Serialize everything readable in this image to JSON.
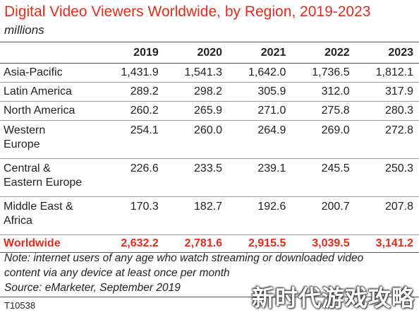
{
  "chart_data": {
    "type": "table",
    "title": "Digital Video Viewers Worldwide, by Region, 2019-2023",
    "subtitle": "millions",
    "columns": [
      "2019",
      "2020",
      "2021",
      "2022",
      "2023"
    ],
    "rows": [
      {
        "label_lines": [
          "Asia-Pacific"
        ],
        "values": [
          "1,431.9",
          "1,541.3",
          "1,642.0",
          "1,736.5",
          "1,812.1"
        ]
      },
      {
        "label_lines": [
          "Latin America"
        ],
        "values": [
          "289.2",
          "298.2",
          "305.9",
          "312.0",
          "317.9"
        ]
      },
      {
        "label_lines": [
          "North America"
        ],
        "values": [
          "260.2",
          "265.9",
          "271.0",
          "275.8",
          "280.3"
        ]
      },
      {
        "label_lines": [
          "Western",
          "Europe"
        ],
        "values": [
          "254.1",
          "260.0",
          "264.9",
          "269.0",
          "272.8"
        ]
      },
      {
        "label_lines": [
          "Central &",
          "Eastern Europe"
        ],
        "values": [
          "226.6",
          "233.5",
          "239.1",
          "245.5",
          "250.3"
        ]
      },
      {
        "label_lines": [
          "Middle East &",
          "Africa"
        ],
        "values": [
          "170.3",
          "182.7",
          "192.6",
          "200.7",
          "207.8"
        ]
      }
    ],
    "total": {
      "label": "Worldwide",
      "values": [
        "2,632.2",
        "2,781.6",
        "2,915.5",
        "3,039.5",
        "3,141.2"
      ]
    },
    "note_lines": [
      "Note: internet users of any age who watch streaming or downloaded video",
      "content via any device at least once per month"
    ],
    "source": "Source: eMarketer, September 2019",
    "code": "T10538",
    "colors": {
      "title": "#e22d1d",
      "total": "#e22d1d"
    }
  },
  "watermark": "新时代游戏攻略"
}
